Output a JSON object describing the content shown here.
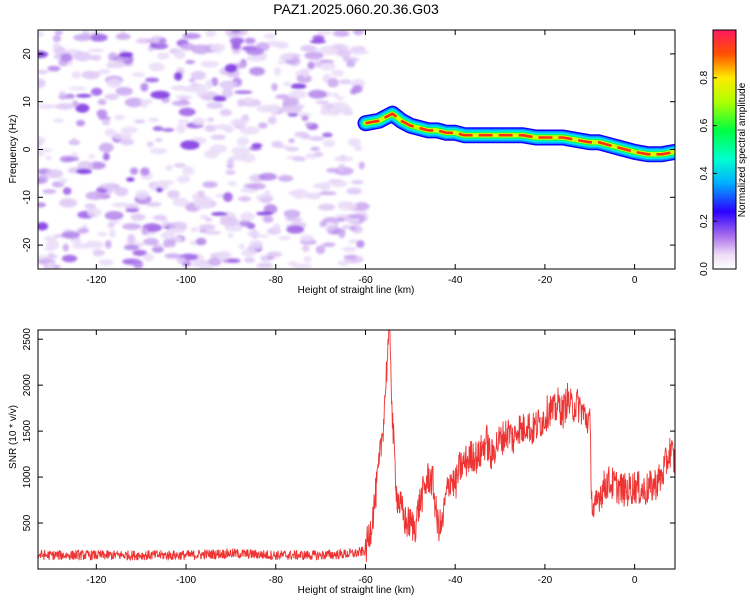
{
  "title": "PAZ1.2025.060.20.36.G03",
  "chart_data": [
    {
      "type": "heatmap",
      "xlabel": "Height of straight line (km)",
      "ylabel": "Frequency (Hz)",
      "xlim": [
        -133,
        9
      ],
      "ylim": [
        -25,
        25
      ],
      "xticks": [
        -120,
        -100,
        -80,
        -60,
        -40,
        -20,
        0
      ],
      "yticks": [
        -20,
        -10,
        0,
        10,
        20
      ],
      "grid": false,
      "noise_region_x": [
        -133,
        -60
      ],
      "ridge": {
        "x": [
          -60,
          -57,
          -54,
          -52,
          -50,
          -48,
          -46,
          -44,
          -42,
          -40,
          -38,
          -36,
          -30,
          -25,
          -22,
          -20,
          -16,
          -13,
          -10,
          -8,
          -6,
          -4,
          -2,
          0,
          3,
          6,
          9
        ],
        "y": [
          5.5,
          6.0,
          7.5,
          6.0,
          5.0,
          4.5,
          4.0,
          4.0,
          3.5,
          3.5,
          3.0,
          3.0,
          3.0,
          3.0,
          2.5,
          2.5,
          2.5,
          2.0,
          1.5,
          1.5,
          1.0,
          0.5,
          0.0,
          -0.5,
          -1.0,
          -1.0,
          -0.5
        ]
      },
      "colorbar": {
        "label": "Normalized spectral amplitude",
        "range": [
          0,
          1
        ],
        "ticks": [
          "0.0",
          "0.2",
          "0.4",
          "0.6",
          "0.8"
        ]
      }
    },
    {
      "type": "line",
      "xlabel": "Height of straight line (km)",
      "ylabel": "SNR (10 * v/v)",
      "xlim": [
        -133,
        9
      ],
      "ylim": [
        0,
        2600
      ],
      "xticks": [
        -120,
        -100,
        -80,
        -60,
        -40,
        -20,
        0
      ],
      "yticks": [
        500,
        1000,
        1500,
        2000,
        2500
      ],
      "grid": false,
      "color": "#ee3333",
      "series": [
        {
          "x": [
            -133,
            -120,
            -100,
            -90,
            -80,
            -70,
            -62,
            -60,
            -59,
            -58,
            -57,
            -56,
            -55,
            -54.5,
            -54,
            -53,
            -52,
            -51,
            -50,
            -49,
            -48,
            -47,
            -46,
            -45,
            -44,
            -43,
            -42,
            -41,
            -40,
            -39,
            -38,
            -37,
            -36,
            -35,
            -34,
            -33,
            -32,
            -31,
            -30,
            -29,
            -28,
            -27,
            -26,
            -25,
            -24,
            -23,
            -22,
            -21,
            -20,
            -19,
            -18,
            -17,
            -16,
            -15,
            -14,
            -13,
            -12,
            -11,
            -10,
            -9.5,
            -9,
            -8,
            -6,
            -4,
            -2,
            0,
            2,
            4,
            6,
            7,
            8,
            9
          ],
          "y": [
            150,
            150,
            150,
            170,
            150,
            150,
            170,
            200,
            400,
            700,
            1100,
            1600,
            2400,
            2550,
            1600,
            800,
            650,
            500,
            500,
            450,
            700,
            850,
            1000,
            950,
            500,
            450,
            800,
            1000,
            900,
            1100,
            1150,
            1200,
            1250,
            1200,
            1300,
            1400,
            1200,
            1350,
            1400,
            1450,
            1500,
            1400,
            1550,
            1500,
            1600,
            1500,
            1550,
            1600,
            1650,
            1750,
            1700,
            1800,
            1700,
            1850,
            1750,
            1800,
            1750,
            1650,
            1600,
            700,
            600,
            800,
            950,
            900,
            850,
            900,
            850,
            900,
            1000,
            1150,
            1300,
            1150
          ]
        }
      ]
    }
  ]
}
